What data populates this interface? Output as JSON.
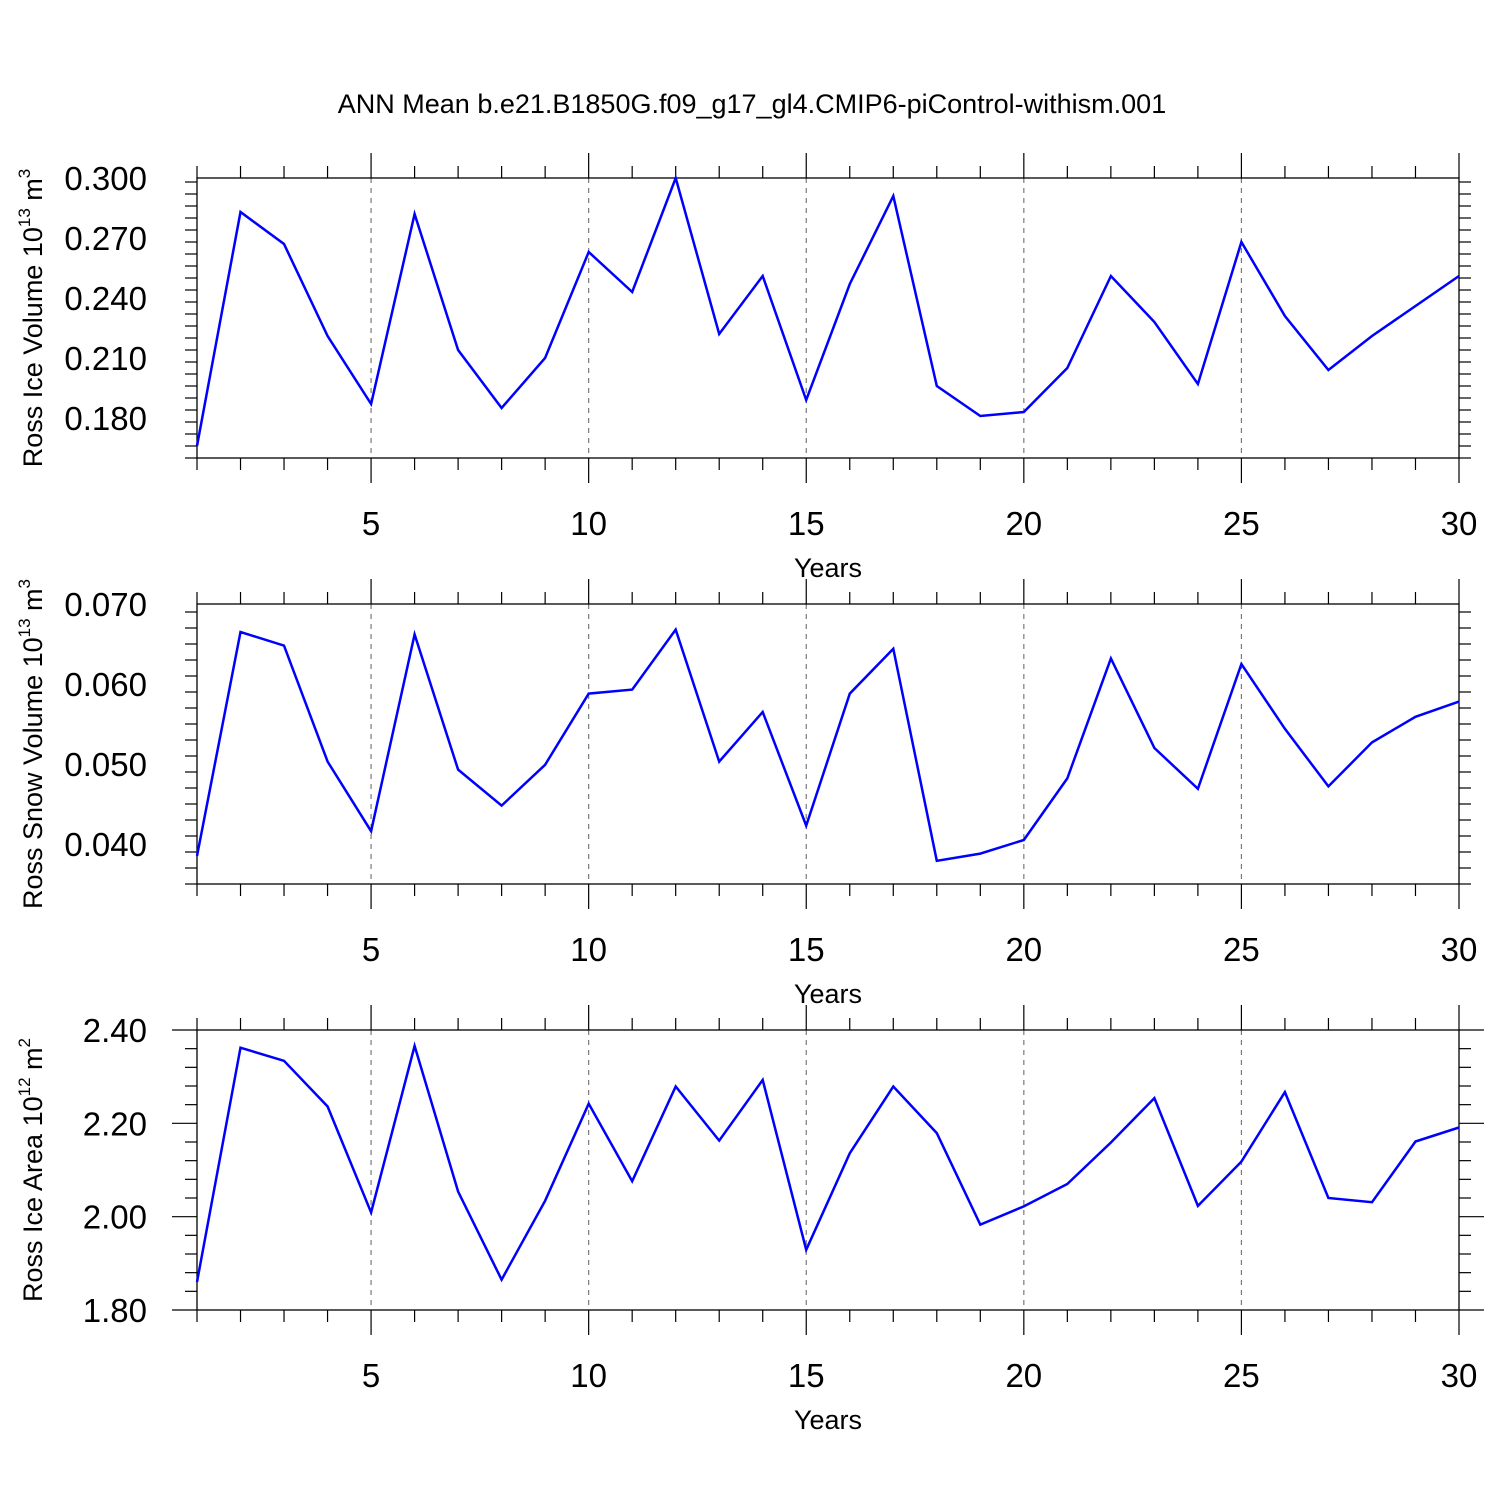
{
  "title": "ANN Mean b.e21.B1850G.f09_g17_gl4.CMIP6-piControl-withism.001",
  "chart_data": [
    {
      "type": "line",
      "xlabel": "Years",
      "ylabel": "Ross Ice Volume 10",
      "ylabel_exp": "13",
      "ylabel_unit": " m",
      "ylabel_unit_exp": "3",
      "xlim": [
        1,
        30
      ],
      "ylim": [
        0.16,
        0.3
      ],
      "xticks": [
        5,
        10,
        15,
        20,
        25,
        30
      ],
      "yticks": [
        0.18,
        0.21,
        0.24,
        0.27,
        0.3
      ],
      "yticklabels": [
        "0.180",
        "0.210",
        "0.240",
        "0.270",
        "0.300"
      ],
      "grid": "vertical dashed at major x ticks",
      "color": "#0000ff",
      "x": [
        1,
        2,
        3,
        4,
        5,
        6,
        7,
        8,
        9,
        10,
        11,
        12,
        13,
        14,
        15,
        16,
        17,
        18,
        19,
        20,
        21,
        22,
        23,
        24,
        25,
        26,
        27,
        28,
        29,
        30
      ],
      "values": [
        0.166,
        0.283,
        0.267,
        0.221,
        0.187,
        0.282,
        0.214,
        0.185,
        0.21,
        0.263,
        0.243,
        0.3,
        0.222,
        0.251,
        0.189,
        0.247,
        0.291,
        0.196,
        0.181,
        0.183,
        0.205,
        0.251,
        0.228,
        0.197,
        0.268,
        0.231,
        0.204,
        0.221,
        0.236,
        0.251
      ]
    },
    {
      "type": "line",
      "xlabel": "Years",
      "ylabel": "Ross Snow Volume 10",
      "ylabel_exp": "13",
      "ylabel_unit": " m",
      "ylabel_unit_exp": "3",
      "xlim": [
        1,
        30
      ],
      "ylim": [
        0.035,
        0.07
      ],
      "xticks": [
        5,
        10,
        15,
        20,
        25,
        30
      ],
      "yticks": [
        0.04,
        0.05,
        0.06,
        0.07
      ],
      "yticklabels": [
        "0.040",
        "0.050",
        "0.060",
        "0.070"
      ],
      "grid": "vertical dashed at major x ticks",
      "color": "#0000ff",
      "x": [
        1,
        2,
        3,
        4,
        5,
        6,
        7,
        8,
        9,
        10,
        11,
        12,
        13,
        14,
        15,
        16,
        17,
        18,
        19,
        20,
        21,
        22,
        23,
        24,
        25,
        26,
        27,
        28,
        29,
        30
      ],
      "values": [
        0.0385,
        0.0665,
        0.0648,
        0.0503,
        0.0416,
        0.0662,
        0.0493,
        0.0448,
        0.0499,
        0.0588,
        0.0593,
        0.0668,
        0.0503,
        0.0565,
        0.0423,
        0.0588,
        0.0644,
        0.0379,
        0.0388,
        0.0405,
        0.0482,
        0.0632,
        0.052,
        0.0469,
        0.0625,
        0.0544,
        0.0472,
        0.0527,
        0.0559,
        0.0578
      ]
    },
    {
      "type": "line",
      "xlabel": "Years",
      "ylabel": "Ross Ice Area 10",
      "ylabel_exp": "12",
      "ylabel_unit": " m",
      "ylabel_unit_exp": "2",
      "xlim": [
        1,
        30
      ],
      "ylim": [
        1.8,
        2.4
      ],
      "xticks": [
        5,
        10,
        15,
        20,
        25,
        30
      ],
      "yticks": [
        1.8,
        2.0,
        2.2,
        2.4
      ],
      "yticklabels": [
        "1.80",
        "2.00",
        "2.20",
        "2.40"
      ],
      "grid": "vertical dashed at major x ticks",
      "color": "#0000ff",
      "x": [
        1,
        2,
        3,
        4,
        5,
        6,
        7,
        8,
        9,
        10,
        11,
        12,
        13,
        14,
        15,
        16,
        17,
        18,
        19,
        20,
        21,
        22,
        23,
        24,
        25,
        26,
        27,
        28,
        29,
        30
      ],
      "values": [
        1.86,
        2.362,
        2.334,
        2.236,
        2.009,
        2.366,
        2.054,
        1.865,
        2.034,
        2.242,
        2.076,
        2.279,
        2.163,
        2.293,
        1.929,
        2.136,
        2.279,
        2.179,
        1.983,
        2.022,
        2.07,
        2.159,
        2.254,
        2.023,
        2.118,
        2.267,
        2.04,
        2.031,
        2.161,
        2.191
      ]
    }
  ]
}
